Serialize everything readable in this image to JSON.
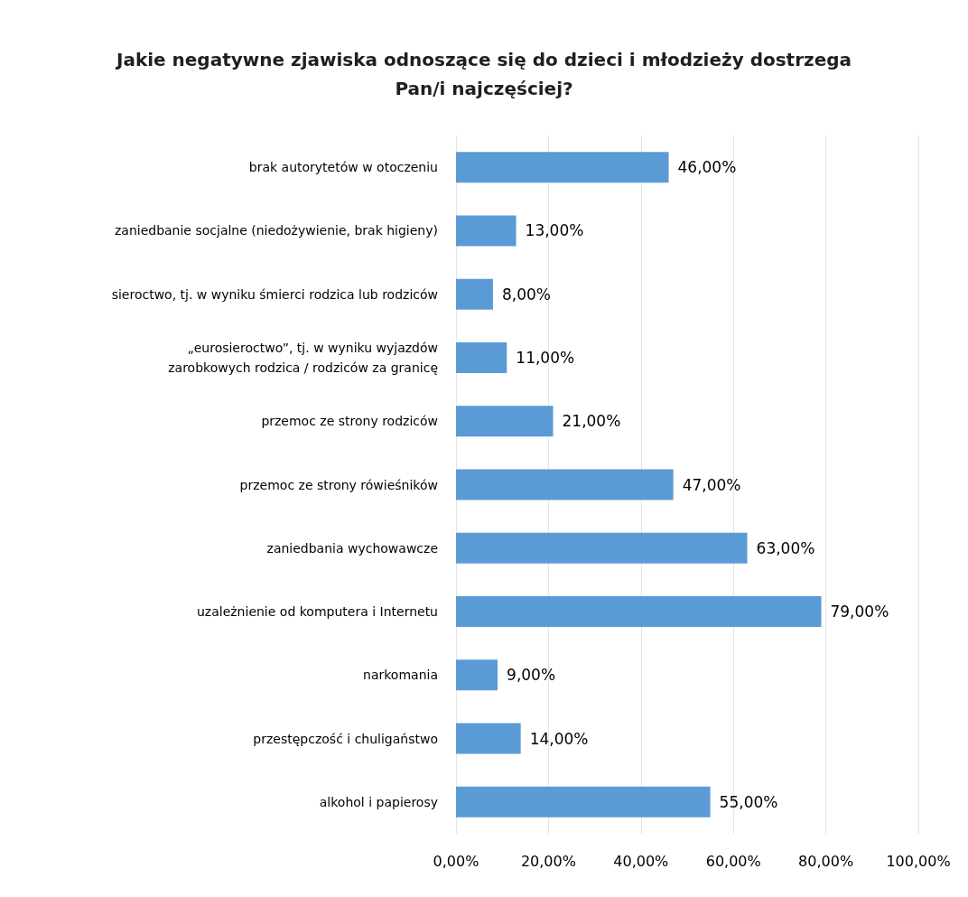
{
  "chart_data": {
    "type": "bar",
    "orientation": "horizontal",
    "title": "Jakie negatywne zjawiska odnoszące się do dzieci i młodzieży dostrzega\nPan/i najczęściej?",
    "categories": [
      "brak autorytetów w otoczeniu",
      "zaniedbanie socjalne (niedożywienie, brak higieny)",
      "sieroctwo, tj. w wyniku śmierci rodzica lub rodziców",
      "„eurosieroctwo”, tj. w wyniku wyjazdów\nzarobkowych rodzica / rodziców za granicę",
      "przemoc ze strony rodziców",
      "przemoc ze strony rówieśników",
      "zaniedbania wychowawcze",
      "uzależnienie od komputera i Internetu",
      "narkomania",
      "przestępczość i chuligaństwo",
      "alkohol i papierosy"
    ],
    "values": [
      46,
      13,
      8,
      11,
      21,
      47,
      63,
      79,
      9,
      14,
      55
    ],
    "value_labels": [
      "46,00%",
      "13,00%",
      "8,00%",
      "11,00%",
      "21,00%",
      "47,00%",
      "63,00%",
      "79,00%",
      "9,00%",
      "14,00%",
      "55,00%"
    ],
    "color": "#5b9bd5",
    "xlim": [
      0,
      100
    ],
    "xticks": [
      {
        "value": 0,
        "label": "0,00%"
      },
      {
        "value": 20,
        "label": "20,00%"
      },
      {
        "value": 40,
        "label": "40,00%"
      },
      {
        "value": 60,
        "label": "60,00%"
      },
      {
        "value": 80,
        "label": "80,00%"
      },
      {
        "value": 100,
        "label": "100,00%"
      }
    ],
    "grid": "x"
  }
}
